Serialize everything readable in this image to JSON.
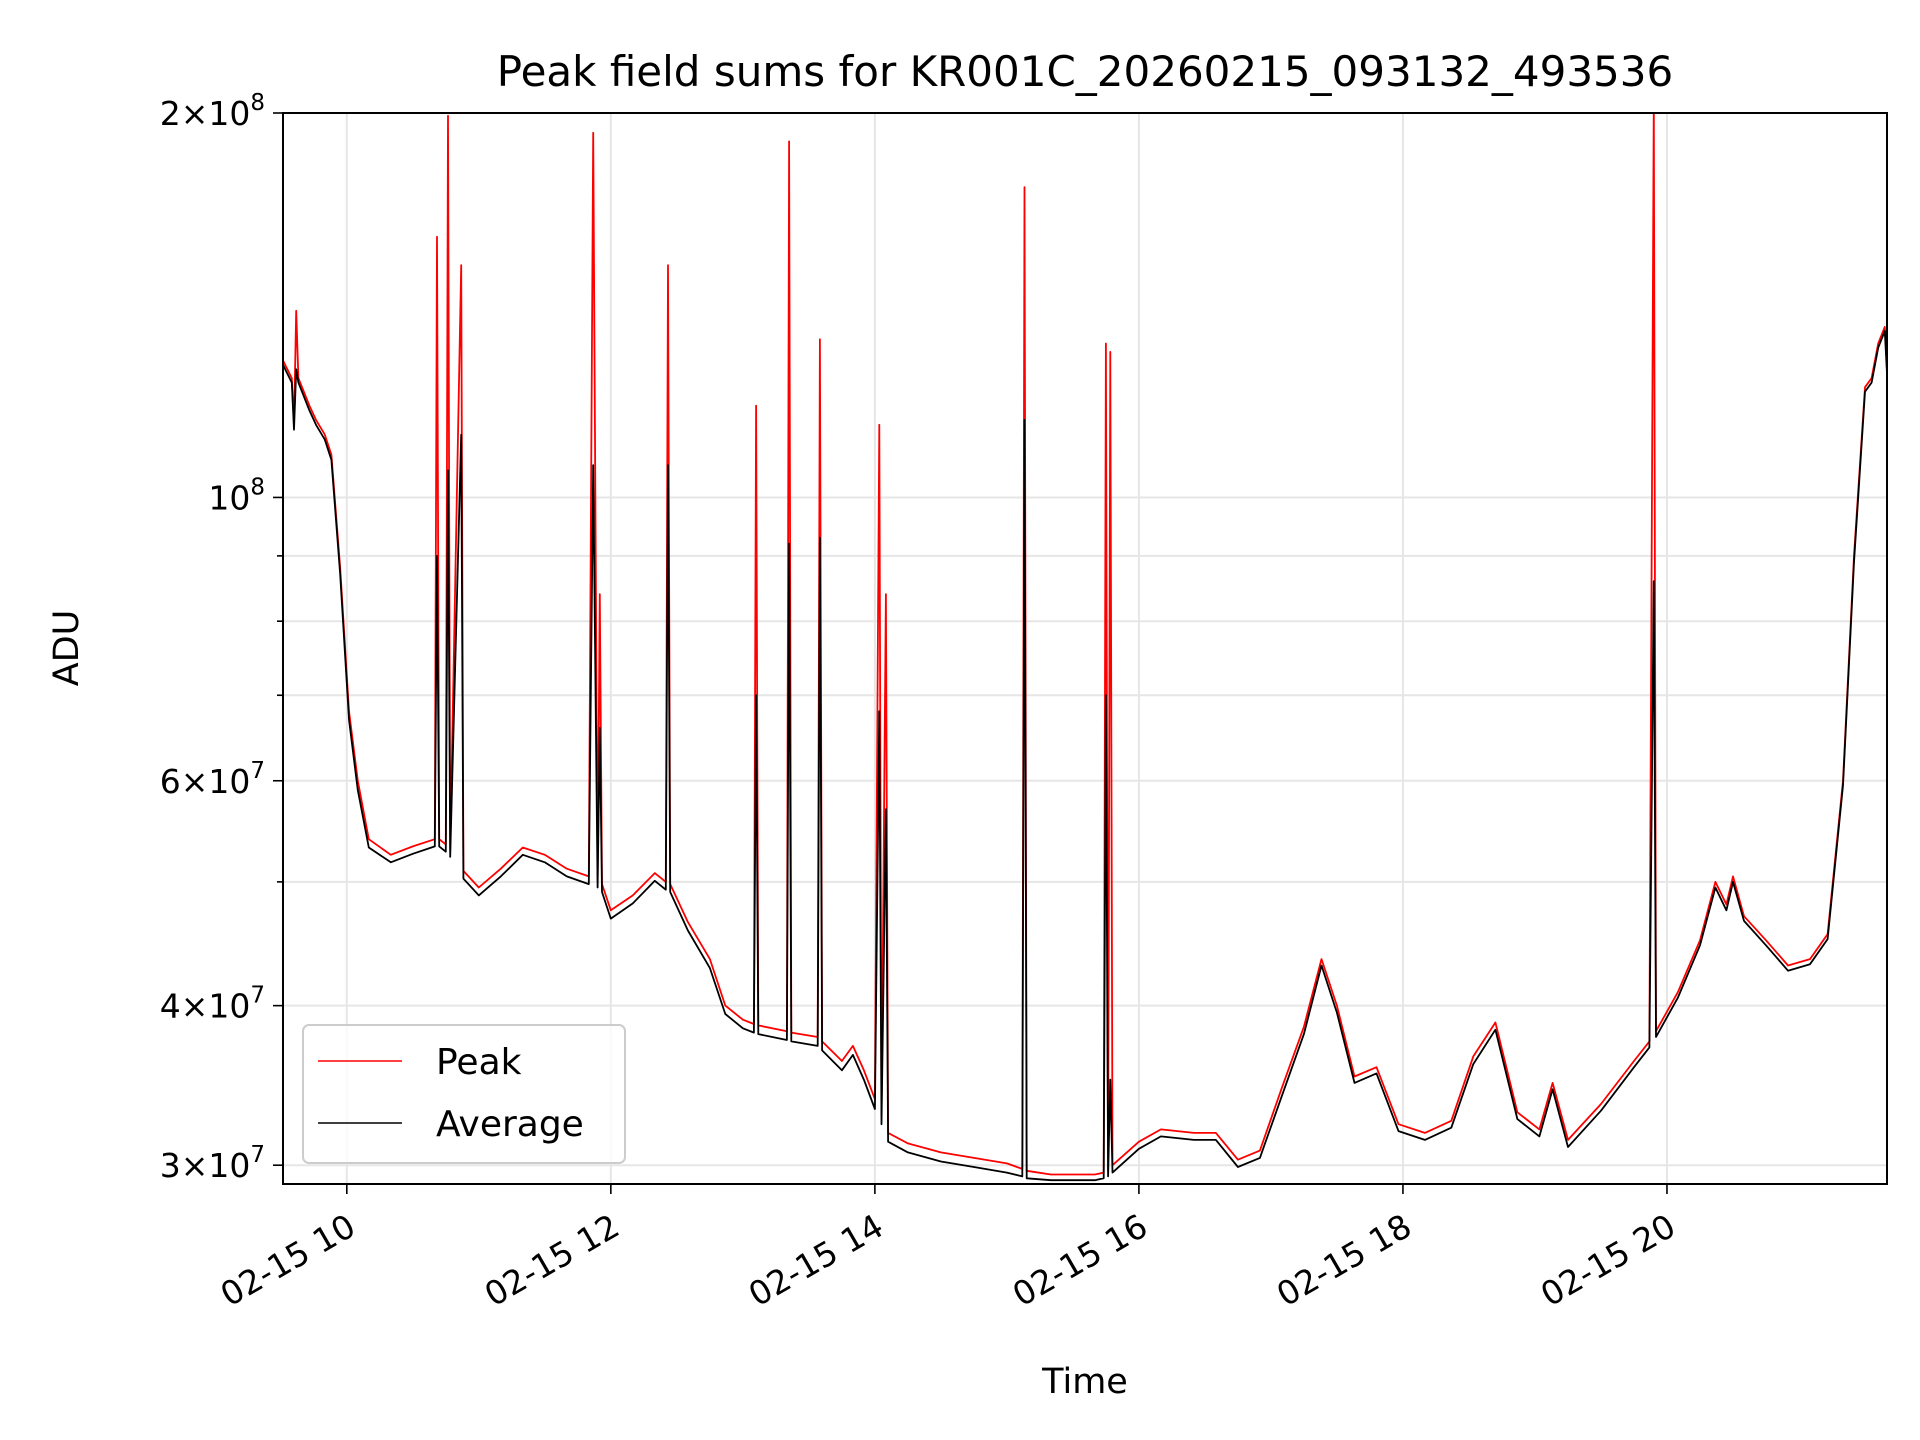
{
  "chart_data": {
    "type": "line",
    "title": "Peak field sums for KR001C_20260215_093132_493536",
    "xlabel": "Time",
    "ylabel": "ADU",
    "y_scale": "log",
    "xlim": [
      "2026-02-15 09:31",
      "2026-02-15 21:40"
    ],
    "ylim": [
      29000000,
      200000000
    ],
    "grid": true,
    "legend_position": "lower-left",
    "x_tick_labels": [
      {
        "t": "2026-02-15 10:00",
        "label": "02-15 10"
      },
      {
        "t": "2026-02-15 12:00",
        "label": "02-15 12"
      },
      {
        "t": "2026-02-15 14:00",
        "label": "02-15 14"
      },
      {
        "t": "2026-02-15 16:00",
        "label": "02-15 16"
      },
      {
        "t": "2026-02-15 18:00",
        "label": "02-15 18"
      },
      {
        "t": "2026-02-15 20:00",
        "label": "02-15 20"
      }
    ],
    "y_tick_labels": [
      {
        "value": 30000000,
        "mant": "3",
        "exp": "7"
      },
      {
        "value": 40000000,
        "mant": "4",
        "exp": "7"
      },
      {
        "value": 60000000,
        "mant": "6",
        "exp": "7"
      },
      {
        "value": 100000000,
        "mant": "",
        "exp": "8"
      },
      {
        "value": 200000000,
        "mant": "2",
        "exp": "8"
      }
    ],
    "series": [
      {
        "name": "Peak",
        "color": "#ff0000",
        "points": [
          [
            "2026-02-15 09:31",
            128000000
          ],
          [
            "2026-02-15 09:35",
            124000000
          ],
          [
            "2026-02-15 09:36",
            114000000
          ],
          [
            "2026-02-15 09:37",
            140000000
          ],
          [
            "2026-02-15 09:38",
            124000000
          ],
          [
            "2026-02-15 09:43",
            118000000
          ],
          [
            "2026-02-15 09:46",
            115000000
          ],
          [
            "2026-02-15 09:50",
            112000000
          ],
          [
            "2026-02-15 09:53",
            108000000
          ],
          [
            "2026-02-15 09:57",
            88000000
          ],
          [
            "2026-02-15 10:01",
            68000000
          ],
          [
            "2026-02-15 10:05",
            60000000
          ],
          [
            "2026-02-15 10:10",
            54000000
          ],
          [
            "2026-02-15 10:20",
            52500000
          ],
          [
            "2026-02-15 10:30",
            53300000
          ],
          [
            "2026-02-15 10:40",
            54000000
          ],
          [
            "2026-02-15 10:41",
            160000000
          ],
          [
            "2026-02-15 10:42",
            54000000
          ],
          [
            "2026-02-15 10:45",
            53500000
          ],
          [
            "2026-02-15 10:46",
            199000000
          ],
          [
            "2026-02-15 10:47",
            53000000
          ],
          [
            "2026-02-15 10:52",
            152000000
          ],
          [
            "2026-02-15 10:53",
            51000000
          ],
          [
            "2026-02-15 11:00",
            49500000
          ],
          [
            "2026-02-15 11:10",
            51200000
          ],
          [
            "2026-02-15 11:20",
            53200000
          ],
          [
            "2026-02-15 11:30",
            52500000
          ],
          [
            "2026-02-15 11:40",
            51200000
          ],
          [
            "2026-02-15 11:50",
            50500000
          ],
          [
            "2026-02-15 11:52",
            193000000
          ],
          [
            "2026-02-15 11:54",
            50200000
          ],
          [
            "2026-02-15 11:55",
            84000000
          ],
          [
            "2026-02-15 11:56",
            49800000
          ],
          [
            "2026-02-15 12:00",
            47500000
          ],
          [
            "2026-02-15 12:10",
            48800000
          ],
          [
            "2026-02-15 12:20",
            50800000
          ],
          [
            "2026-02-15 12:25",
            50000000
          ],
          [
            "2026-02-15 12:26",
            152000000
          ],
          [
            "2026-02-15 12:27",
            49800000
          ],
          [
            "2026-02-15 12:35",
            46500000
          ],
          [
            "2026-02-15 12:45",
            43500000
          ],
          [
            "2026-02-15 12:52",
            40000000
          ],
          [
            "2026-02-15 13:00",
            39000000
          ],
          [
            "2026-02-15 13:05",
            38700000
          ],
          [
            "2026-02-15 13:06",
            118000000
          ],
          [
            "2026-02-15 13:07",
            38600000
          ],
          [
            "2026-02-15 13:20",
            38200000
          ],
          [
            "2026-02-15 13:21",
            190000000
          ],
          [
            "2026-02-15 13:22",
            38100000
          ],
          [
            "2026-02-15 13:34",
            37800000
          ],
          [
            "2026-02-15 13:35",
            133000000
          ],
          [
            "2026-02-15 13:36",
            37500000
          ],
          [
            "2026-02-15 13:45",
            36200000
          ],
          [
            "2026-02-15 13:50",
            37200000
          ],
          [
            "2026-02-15 13:55",
            35600000
          ],
          [
            "2026-02-15 14:00",
            33800000
          ],
          [
            "2026-02-15 14:02",
            114000000
          ],
          [
            "2026-02-15 14:03",
            32800000
          ],
          [
            "2026-02-15 14:05",
            84000000
          ],
          [
            "2026-02-15 14:06",
            31800000
          ],
          [
            "2026-02-15 14:15",
            31200000
          ],
          [
            "2026-02-15 14:30",
            30700000
          ],
          [
            "2026-02-15 14:45",
            30400000
          ],
          [
            "2026-02-15 15:00",
            30100000
          ],
          [
            "2026-02-15 15:07",
            29800000
          ],
          [
            "2026-02-15 15:08",
            175000000
          ],
          [
            "2026-02-15 15:09",
            29700000
          ],
          [
            "2026-02-15 15:20",
            29500000
          ],
          [
            "2026-02-15 15:40",
            29500000
          ],
          [
            "2026-02-15 15:44",
            29600000
          ],
          [
            "2026-02-15 15:45",
            132000000
          ],
          [
            "2026-02-15 15:46",
            29700000
          ],
          [
            "2026-02-15 15:47",
            130000000
          ],
          [
            "2026-02-15 15:48",
            30000000
          ],
          [
            "2026-02-15 16:00",
            31300000
          ],
          [
            "2026-02-15 16:10",
            32000000
          ],
          [
            "2026-02-15 16:25",
            31800000
          ],
          [
            "2026-02-15 16:35",
            31800000
          ],
          [
            "2026-02-15 16:45",
            30300000
          ],
          [
            "2026-02-15 16:55",
            30800000
          ],
          [
            "2026-02-15 17:05",
            34500000
          ],
          [
            "2026-02-15 17:15",
            38500000
          ],
          [
            "2026-02-15 17:23",
            43500000
          ],
          [
            "2026-02-15 17:30",
            40000000
          ],
          [
            "2026-02-15 17:38",
            35200000
          ],
          [
            "2026-02-15 17:48",
            35800000
          ],
          [
            "2026-02-15 17:58",
            32300000
          ],
          [
            "2026-02-15 18:10",
            31800000
          ],
          [
            "2026-02-15 18:22",
            32500000
          ],
          [
            "2026-02-15 18:32",
            36500000
          ],
          [
            "2026-02-15 18:42",
            38800000
          ],
          [
            "2026-02-15 18:52",
            33000000
          ],
          [
            "2026-02-15 19:02",
            32000000
          ],
          [
            "2026-02-15 19:08",
            34800000
          ],
          [
            "2026-02-15 19:15",
            31400000
          ],
          [
            "2026-02-15 19:30",
            33500000
          ],
          [
            "2026-02-15 19:45",
            36200000
          ],
          [
            "2026-02-15 19:52",
            37500000
          ],
          [
            "2026-02-15 19:54",
            205000000
          ],
          [
            "2026-02-15 19:55",
            38200000
          ],
          [
            "2026-02-15 20:05",
            41000000
          ],
          [
            "2026-02-15 20:15",
            45000000
          ],
          [
            "2026-02-15 20:22",
            50000000
          ],
          [
            "2026-02-15 20:27",
            48000000
          ],
          [
            "2026-02-15 20:30",
            50500000
          ],
          [
            "2026-02-15 20:35",
            47000000
          ],
          [
            "2026-02-15 20:45",
            45000000
          ],
          [
            "2026-02-15 20:55",
            43000000
          ],
          [
            "2026-02-15 21:05",
            43500000
          ],
          [
            "2026-02-15 21:13",
            45500000
          ],
          [
            "2026-02-15 21:20",
            60000000
          ],
          [
            "2026-02-15 21:25",
            90000000
          ],
          [
            "2026-02-15 21:30",
            122000000
          ],
          [
            "2026-02-15 21:33",
            124000000
          ],
          [
            "2026-02-15 21:36",
            132000000
          ],
          [
            "2026-02-15 21:39",
            136000000
          ],
          [
            "2026-02-15 21:40",
            126000000
          ]
        ]
      },
      {
        "name": "Average",
        "color": "#000000",
        "points": [
          [
            "2026-02-15 09:31",
            127000000
          ],
          [
            "2026-02-15 09:35",
            123000000
          ],
          [
            "2026-02-15 09:36",
            113000000
          ],
          [
            "2026-02-15 09:37",
            126000000
          ],
          [
            "2026-02-15 09:38",
            123000000
          ],
          [
            "2026-02-15 09:43",
            117000000
          ],
          [
            "2026-02-15 09:46",
            114000000
          ],
          [
            "2026-02-15 09:50",
            111000000
          ],
          [
            "2026-02-15 09:53",
            107000000
          ],
          [
            "2026-02-15 09:57",
            87000000
          ],
          [
            "2026-02-15 10:01",
            67000000
          ],
          [
            "2026-02-15 10:05",
            59000000
          ],
          [
            "2026-02-15 10:10",
            53200000
          ],
          [
            "2026-02-15 10:20",
            51800000
          ],
          [
            "2026-02-15 10:30",
            52600000
          ],
          [
            "2026-02-15 10:40",
            53300000
          ],
          [
            "2026-02-15 10:41",
            90000000
          ],
          [
            "2026-02-15 10:42",
            53300000
          ],
          [
            "2026-02-15 10:45",
            52800000
          ],
          [
            "2026-02-15 10:46",
            105000000
          ],
          [
            "2026-02-15 10:47",
            52300000
          ],
          [
            "2026-02-15 10:52",
            112000000
          ],
          [
            "2026-02-15 10:53",
            50300000
          ],
          [
            "2026-02-15 11:00",
            48800000
          ],
          [
            "2026-02-15 11:10",
            50500000
          ],
          [
            "2026-02-15 11:20",
            52500000
          ],
          [
            "2026-02-15 11:30",
            51800000
          ],
          [
            "2026-02-15 11:40",
            50500000
          ],
          [
            "2026-02-15 11:50",
            49800000
          ],
          [
            "2026-02-15 11:52",
            106000000
          ],
          [
            "2026-02-15 11:54",
            49500000
          ],
          [
            "2026-02-15 11:55",
            66000000
          ],
          [
            "2026-02-15 11:56",
            49100000
          ],
          [
            "2026-02-15 12:00",
            46800000
          ],
          [
            "2026-02-15 12:10",
            48100000
          ],
          [
            "2026-02-15 12:20",
            50100000
          ],
          [
            "2026-02-15 12:25",
            49300000
          ],
          [
            "2026-02-15 12:26",
            106000000
          ],
          [
            "2026-02-15 12:27",
            49100000
          ],
          [
            "2026-02-15 12:35",
            45800000
          ],
          [
            "2026-02-15 12:45",
            42800000
          ],
          [
            "2026-02-15 12:52",
            39400000
          ],
          [
            "2026-02-15 13:00",
            38400000
          ],
          [
            "2026-02-15 13:05",
            38100000
          ],
          [
            "2026-02-15 13:06",
            70000000
          ],
          [
            "2026-02-15 13:07",
            38000000
          ],
          [
            "2026-02-15 13:20",
            37600000
          ],
          [
            "2026-02-15 13:21",
            92000000
          ],
          [
            "2026-02-15 13:22",
            37500000
          ],
          [
            "2026-02-15 13:34",
            37200000
          ],
          [
            "2026-02-15 13:35",
            93000000
          ],
          [
            "2026-02-15 13:36",
            36900000
          ],
          [
            "2026-02-15 13:45",
            35600000
          ],
          [
            "2026-02-15 13:50",
            36600000
          ],
          [
            "2026-02-15 13:55",
            35000000
          ],
          [
            "2026-02-15 14:00",
            33200000
          ],
          [
            "2026-02-15 14:02",
            68000000
          ],
          [
            "2026-02-15 14:03",
            32300000
          ],
          [
            "2026-02-15 14:05",
            57000000
          ],
          [
            "2026-02-15 14:06",
            31300000
          ],
          [
            "2026-02-15 14:15",
            30700000
          ],
          [
            "2026-02-15 14:30",
            30200000
          ],
          [
            "2026-02-15 14:45",
            29900000
          ],
          [
            "2026-02-15 15:00",
            29600000
          ],
          [
            "2026-02-15 15:07",
            29400000
          ],
          [
            "2026-02-15 15:08",
            115000000
          ],
          [
            "2026-02-15 15:09",
            29300000
          ],
          [
            "2026-02-15 15:20",
            29200000
          ],
          [
            "2026-02-15 15:40",
            29200000
          ],
          [
            "2026-02-15 15:44",
            29300000
          ],
          [
            "2026-02-15 15:45",
            70000000
          ],
          [
            "2026-02-15 15:46",
            29400000
          ],
          [
            "2026-02-15 15:47",
            35000000
          ],
          [
            "2026-02-15 15:48",
            29600000
          ],
          [
            "2026-02-15 16:00",
            30900000
          ],
          [
            "2026-02-15 16:10",
            31600000
          ],
          [
            "2026-02-15 16:25",
            31400000
          ],
          [
            "2026-02-15 16:35",
            31400000
          ],
          [
            "2026-02-15 16:45",
            29900000
          ],
          [
            "2026-02-15 16:55",
            30400000
          ],
          [
            "2026-02-15 17:05",
            34000000
          ],
          [
            "2026-02-15 17:15",
            38000000
          ],
          [
            "2026-02-15 17:23",
            43000000
          ],
          [
            "2026-02-15 17:30",
            39500000
          ],
          [
            "2026-02-15 17:38",
            34800000
          ],
          [
            "2026-02-15 17:48",
            35400000
          ],
          [
            "2026-02-15 17:58",
            31900000
          ],
          [
            "2026-02-15 18:10",
            31400000
          ],
          [
            "2026-02-15 18:22",
            32100000
          ],
          [
            "2026-02-15 18:32",
            36000000
          ],
          [
            "2026-02-15 18:42",
            38300000
          ],
          [
            "2026-02-15 18:52",
            32600000
          ],
          [
            "2026-02-15 19:02",
            31600000
          ],
          [
            "2026-02-15 19:08",
            34400000
          ],
          [
            "2026-02-15 19:15",
            31000000
          ],
          [
            "2026-02-15 19:30",
            33100000
          ],
          [
            "2026-02-15 19:45",
            35800000
          ],
          [
            "2026-02-15 19:52",
            37100000
          ],
          [
            "2026-02-15 19:54",
            86000000
          ],
          [
            "2026-02-15 19:55",
            37800000
          ],
          [
            "2026-02-15 20:05",
            40600000
          ],
          [
            "2026-02-15 20:15",
            44600000
          ],
          [
            "2026-02-15 20:22",
            49500000
          ],
          [
            "2026-02-15 20:27",
            47500000
          ],
          [
            "2026-02-15 20:30",
            50000000
          ],
          [
            "2026-02-15 20:35",
            46600000
          ],
          [
            "2026-02-15 20:45",
            44600000
          ],
          [
            "2026-02-15 20:55",
            42600000
          ],
          [
            "2026-02-15 21:05",
            43100000
          ],
          [
            "2026-02-15 21:13",
            45100000
          ],
          [
            "2026-02-15 21:20",
            59500000
          ],
          [
            "2026-02-15 21:25",
            89000000
          ],
          [
            "2026-02-15 21:30",
            121000000
          ],
          [
            "2026-02-15 21:33",
            123000000
          ],
          [
            "2026-02-15 21:36",
            131000000
          ],
          [
            "2026-02-15 21:39",
            135000000
          ],
          [
            "2026-02-15 21:40",
            125000000
          ]
        ]
      }
    ]
  }
}
